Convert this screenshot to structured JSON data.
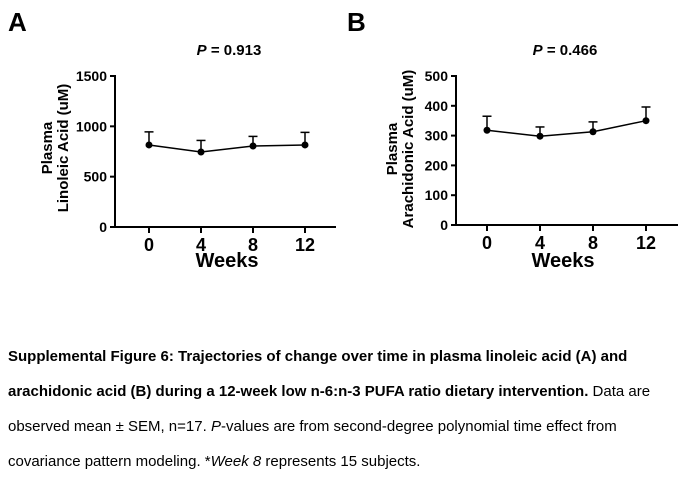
{
  "chart_data": [
    {
      "type": "line",
      "panel_label": "A",
      "p_symbol": "P",
      "p_rest": " = 0.913",
      "xlabel": "Weeks",
      "ylabel_line1": "Plasma",
      "ylabel_line2": "Linoleic Acid (uM)",
      "x": [
        0,
        4,
        8,
        12
      ],
      "xticks": [
        0,
        4,
        8,
        12
      ],
      "ylim": [
        0,
        1500
      ],
      "yticks": [
        0,
        500,
        1000,
        1500
      ],
      "series": [
        {
          "name": "Plasma Linoleic Acid mean",
          "mean": [
            815,
            745,
            805,
            815
          ],
          "sem_upper": [
            130,
            115,
            95,
            125
          ]
        }
      ],
      "error_bars": "upper_only",
      "marker": "filled_circle",
      "line_color": "#000000",
      "grid": false,
      "legend": "none"
    },
    {
      "type": "line",
      "panel_label": "B",
      "p_symbol": "P",
      "p_rest": " = 0.466",
      "xlabel": "Weeks",
      "ylabel_line1": "Plasma",
      "ylabel_line2": "Arachidonic Acid (uM)",
      "x": [
        0,
        4,
        8,
        12
      ],
      "xticks": [
        0,
        4,
        8,
        12
      ],
      "ylim": [
        0,
        500
      ],
      "yticks": [
        0,
        100,
        200,
        300,
        400,
        500
      ],
      "series": [
        {
          "name": "Plasma Arachidonic Acid mean",
          "mean": [
            318,
            298,
            313,
            350
          ],
          "sem_upper": [
            47,
            31,
            33,
            46
          ]
        }
      ],
      "error_bars": "upper_only",
      "marker": "filled_circle",
      "line_color": "#000000",
      "grid": false,
      "legend": "none"
    }
  ],
  "caption": {
    "lines": [
      [
        {
          "style": "bold",
          "text": "Supplemental Figure 6: Trajectories of change over time in plasma linoleic acid (A) and"
        }
      ],
      [
        {
          "style": "bold",
          "text": "arachidonic acid (B) during a 12-week low n-6:n-3 PUFA ratio dietary intervention."
        },
        {
          "style": "regular",
          "text": " Data are"
        }
      ],
      [
        {
          "style": "regular",
          "text": "observed mean ± SEM, n=17. "
        },
        {
          "style": "italic",
          "text": "P"
        },
        {
          "style": "regular",
          "text": "-values are from second-degree polynomial time effect from"
        }
      ],
      [
        {
          "style": "regular",
          "text": "covariance pattern modeling. *"
        },
        {
          "style": "italic",
          "text": "Week 8"
        },
        {
          "style": "regular",
          "text": " represents 15 subjects."
        }
      ]
    ]
  }
}
